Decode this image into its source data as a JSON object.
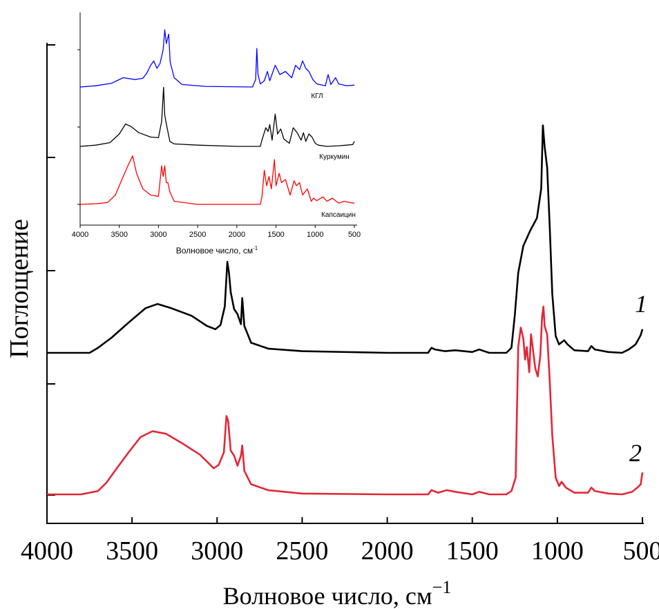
{
  "chart_data": [
    {
      "type": "line",
      "title": "",
      "xlabel": "Волновое число, см",
      "xlabel_sup": "−1",
      "ylabel": "Поглощение",
      "xlim": [
        4000,
        500
      ],
      "x_reversed": true,
      "xticks": [
        "4000",
        "3500",
        "3000",
        "2500",
        "2000",
        "1500",
        "1000",
        "500"
      ],
      "y_ticks_unlabeled": true,
      "grid": false,
      "series": [
        {
          "name": "1",
          "color": "#000000",
          "points": [
            [
              4000,
              0.0
            ],
            [
              3750,
              0.0
            ],
            [
              3700,
              0.06
            ],
            [
              3620,
              0.18
            ],
            [
              3520,
              0.36
            ],
            [
              3420,
              0.53
            ],
            [
              3350,
              0.58
            ],
            [
              3270,
              0.53
            ],
            [
              3150,
              0.44
            ],
            [
              3060,
              0.32
            ],
            [
              3010,
              0.28
            ],
            [
              2980,
              0.33
            ],
            [
              2955,
              0.55
            ],
            [
              2940,
              1.08
            ],
            [
              2930,
              0.95
            ],
            [
              2920,
              0.72
            ],
            [
              2900,
              0.52
            ],
            [
              2880,
              0.46
            ],
            [
              2860,
              0.34
            ],
            [
              2852,
              0.65
            ],
            [
              2840,
              0.32
            ],
            [
              2800,
              0.12
            ],
            [
              2700,
              0.05
            ],
            [
              2500,
              0.02
            ],
            [
              2000,
              0.0
            ],
            [
              1760,
              0.0
            ],
            [
              1740,
              0.06
            ],
            [
              1720,
              0.04
            ],
            [
              1660,
              0.02
            ],
            [
              1600,
              0.03
            ],
            [
              1500,
              0.01
            ],
            [
              1460,
              0.04
            ],
            [
              1400,
              0.0
            ],
            [
              1300,
              0.0
            ],
            [
              1270,
              0.06
            ],
            [
              1250,
              0.45
            ],
            [
              1230,
              0.95
            ],
            [
              1200,
              1.27
            ],
            [
              1160,
              1.45
            ],
            [
              1120,
              1.6
            ],
            [
              1095,
              1.95
            ],
            [
              1085,
              2.7
            ],
            [
              1075,
              2.45
            ],
            [
              1060,
              2.2
            ],
            [
              1045,
              1.5
            ],
            [
              1030,
              0.7
            ],
            [
              1010,
              0.2
            ],
            [
              990,
              0.1
            ],
            [
              960,
              0.15
            ],
            [
              940,
              0.1
            ],
            [
              900,
              0.03
            ],
            [
              820,
              0.02
            ],
            [
              800,
              0.08
            ],
            [
              780,
              0.04
            ],
            [
              700,
              0.01
            ],
            [
              620,
              0.0
            ],
            [
              580,
              0.04
            ],
            [
              540,
              0.1
            ],
            [
              510,
              0.21
            ],
            [
              500,
              0.28
            ]
          ]
        },
        {
          "name": "2",
          "color": "#e32636",
          "points": [
            [
              4000,
              0.0
            ],
            [
              3800,
              0.0
            ],
            [
              3700,
              0.04
            ],
            [
              3650,
              0.14
            ],
            [
              3600,
              0.28
            ],
            [
              3520,
              0.5
            ],
            [
              3450,
              0.68
            ],
            [
              3380,
              0.75
            ],
            [
              3300,
              0.72
            ],
            [
              3200,
              0.6
            ],
            [
              3100,
              0.47
            ],
            [
              3020,
              0.31
            ],
            [
              2990,
              0.35
            ],
            [
              2960,
              0.5
            ],
            [
              2945,
              0.93
            ],
            [
              2935,
              0.87
            ],
            [
              2920,
              0.52
            ],
            [
              2900,
              0.46
            ],
            [
              2880,
              0.34
            ],
            [
              2860,
              0.46
            ],
            [
              2852,
              0.58
            ],
            [
              2840,
              0.28
            ],
            [
              2800,
              0.12
            ],
            [
              2700,
              0.05
            ],
            [
              2500,
              0.01
            ],
            [
              2000,
              0.0
            ],
            [
              1760,
              0.0
            ],
            [
              1740,
              0.05
            ],
            [
              1700,
              0.02
            ],
            [
              1650,
              0.05
            ],
            [
              1600,
              0.03
            ],
            [
              1500,
              0.0
            ],
            [
              1460,
              0.03
            ],
            [
              1400,
              0.0
            ],
            [
              1300,
              0.0
            ],
            [
              1270,
              0.04
            ],
            [
              1245,
              0.2
            ],
            [
              1230,
              1.75
            ],
            [
              1215,
              1.98
            ],
            [
              1200,
              1.85
            ],
            [
              1190,
              1.6
            ],
            [
              1180,
              1.75
            ],
            [
              1165,
              1.45
            ],
            [
              1155,
              1.9
            ],
            [
              1145,
              1.75
            ],
            [
              1130,
              1.5
            ],
            [
              1115,
              1.4
            ],
            [
              1100,
              1.65
            ],
            [
              1090,
              2.1
            ],
            [
              1082,
              2.23
            ],
            [
              1075,
              2.0
            ],
            [
              1060,
              1.9
            ],
            [
              1045,
              1.35
            ],
            [
              1030,
              0.7
            ],
            [
              1010,
              0.2
            ],
            [
              990,
              0.1
            ],
            [
              975,
              0.15
            ],
            [
              950,
              0.08
            ],
            [
              900,
              0.02
            ],
            [
              820,
              0.02
            ],
            [
              800,
              0.08
            ],
            [
              780,
              0.04
            ],
            [
              700,
              0.01
            ],
            [
              620,
              0.0
            ],
            [
              560,
              0.03
            ],
            [
              530,
              0.08
            ],
            [
              510,
              0.12
            ],
            [
              500,
              0.26
            ]
          ]
        }
      ]
    },
    {
      "type": "line",
      "title": "",
      "xlabel": "Волновое число, см",
      "xlabel_sup": "-1",
      "ylabel": "",
      "xlim": [
        4000,
        500
      ],
      "x_reversed": true,
      "xticks": [
        "4000",
        "3500",
        "3000",
        "2500",
        "2000",
        "1500",
        "1000",
        "500"
      ],
      "y_ticks_unlabeled": true,
      "grid": false,
      "series": [
        {
          "name": "КГЛ",
          "color": "#0000ff",
          "points": [
            [
              4000,
              0.0
            ],
            [
              3800,
              0.02
            ],
            [
              3600,
              0.06
            ],
            [
              3450,
              0.15
            ],
            [
              3300,
              0.12
            ],
            [
              3200,
              0.14
            ],
            [
              3150,
              0.22
            ],
            [
              3100,
              0.35
            ],
            [
              3060,
              0.42
            ],
            [
              3020,
              0.3
            ],
            [
              2980,
              0.38
            ],
            [
              2940,
              0.6
            ],
            [
              2920,
              0.92
            ],
            [
              2900,
              0.7
            ],
            [
              2870,
              0.85
            ],
            [
              2850,
              0.4
            ],
            [
              2800,
              0.15
            ],
            [
              2700,
              0.04
            ],
            [
              2400,
              0.01
            ],
            [
              1800,
              0.0
            ],
            [
              1760,
              0.12
            ],
            [
              1745,
              0.62
            ],
            [
              1730,
              0.2
            ],
            [
              1700,
              0.05
            ],
            [
              1650,
              0.1
            ],
            [
              1610,
              0.25
            ],
            [
              1580,
              0.1
            ],
            [
              1510,
              0.35
            ],
            [
              1450,
              0.2
            ],
            [
              1380,
              0.25
            ],
            [
              1300,
              0.15
            ],
            [
              1250,
              0.35
            ],
            [
              1200,
              0.28
            ],
            [
              1160,
              0.42
            ],
            [
              1120,
              0.3
            ],
            [
              1080,
              0.25
            ],
            [
              1030,
              0.12
            ],
            [
              980,
              0.05
            ],
            [
              870,
              0.02
            ],
            [
              835,
              0.2
            ],
            [
              800,
              0.04
            ],
            [
              740,
              0.15
            ],
            [
              700,
              0.05
            ],
            [
              600,
              0.02
            ],
            [
              500,
              0.03
            ]
          ]
        },
        {
          "name": "Куркумин",
          "color": "#000000",
          "points": [
            [
              4000,
              0.0
            ],
            [
              3800,
              0.02
            ],
            [
              3620,
              0.06
            ],
            [
              3500,
              0.2
            ],
            [
              3420,
              0.36
            ],
            [
              3350,
              0.32
            ],
            [
              3250,
              0.22
            ],
            [
              3100,
              0.15
            ],
            [
              3000,
              0.14
            ],
            [
              2960,
              0.4
            ],
            [
              2935,
              0.95
            ],
            [
              2920,
              0.5
            ],
            [
              2890,
              0.3
            ],
            [
              2855,
              0.08
            ],
            [
              2800,
              0.04
            ],
            [
              2500,
              0.02
            ],
            [
              2000,
              0.0
            ],
            [
              1700,
              0.0
            ],
            [
              1680,
              0.1
            ],
            [
              1630,
              0.3
            ],
            [
              1600,
              0.24
            ],
            [
              1580,
              0.35
            ],
            [
              1550,
              0.1
            ],
            [
              1510,
              0.52
            ],
            [
              1480,
              0.2
            ],
            [
              1440,
              0.28
            ],
            [
              1400,
              0.12
            ],
            [
              1330,
              0.05
            ],
            [
              1280,
              0.3
            ],
            [
              1230,
              0.22
            ],
            [
              1180,
              0.1
            ],
            [
              1150,
              0.22
            ],
            [
              1120,
              0.08
            ],
            [
              1080,
              0.2
            ],
            [
              1040,
              0.15
            ],
            [
              1000,
              0.05
            ],
            [
              960,
              0.02
            ],
            [
              850,
              0.0
            ],
            [
              700,
              0.01
            ],
            [
              600,
              0.02
            ],
            [
              520,
              0.03
            ],
            [
              500,
              0.08
            ]
          ]
        },
        {
          "name": "Капсаицин",
          "color": "#ff0000",
          "points": [
            [
              4000,
              0.0
            ],
            [
              3800,
              0.01
            ],
            [
              3650,
              0.03
            ],
            [
              3550,
              0.15
            ],
            [
              3450,
              0.45
            ],
            [
              3380,
              0.65
            ],
            [
              3330,
              0.78
            ],
            [
              3280,
              0.5
            ],
            [
              3200,
              0.25
            ],
            [
              3100,
              0.15
            ],
            [
              3000,
              0.13
            ],
            [
              2960,
              0.62
            ],
            [
              2940,
              0.45
            ],
            [
              2920,
              0.62
            ],
            [
              2900,
              0.35
            ],
            [
              2880,
              0.35
            ],
            [
              2855,
              0.2
            ],
            [
              2800,
              0.05
            ],
            [
              2500,
              0.0
            ],
            [
              1700,
              0.0
            ],
            [
              1680,
              0.12
            ],
            [
              1650,
              0.55
            ],
            [
              1620,
              0.3
            ],
            [
              1590,
              0.45
            ],
            [
              1560,
              0.25
            ],
            [
              1520,
              0.72
            ],
            [
              1500,
              0.3
            ],
            [
              1460,
              0.5
            ],
            [
              1430,
              0.35
            ],
            [
              1380,
              0.4
            ],
            [
              1320,
              0.15
            ],
            [
              1270,
              0.38
            ],
            [
              1240,
              0.3
            ],
            [
              1200,
              0.35
            ],
            [
              1160,
              0.15
            ],
            [
              1100,
              0.25
            ],
            [
              1050,
              0.05
            ],
            [
              1020,
              0.1
            ],
            [
              980,
              0.06
            ],
            [
              900,
              0.12
            ],
            [
              850,
              0.05
            ],
            [
              780,
              0.1
            ],
            [
              700,
              0.02
            ],
            [
              630,
              0.05
            ],
            [
              560,
              0.03
            ],
            [
              500,
              0.02
            ]
          ]
        }
      ]
    }
  ]
}
